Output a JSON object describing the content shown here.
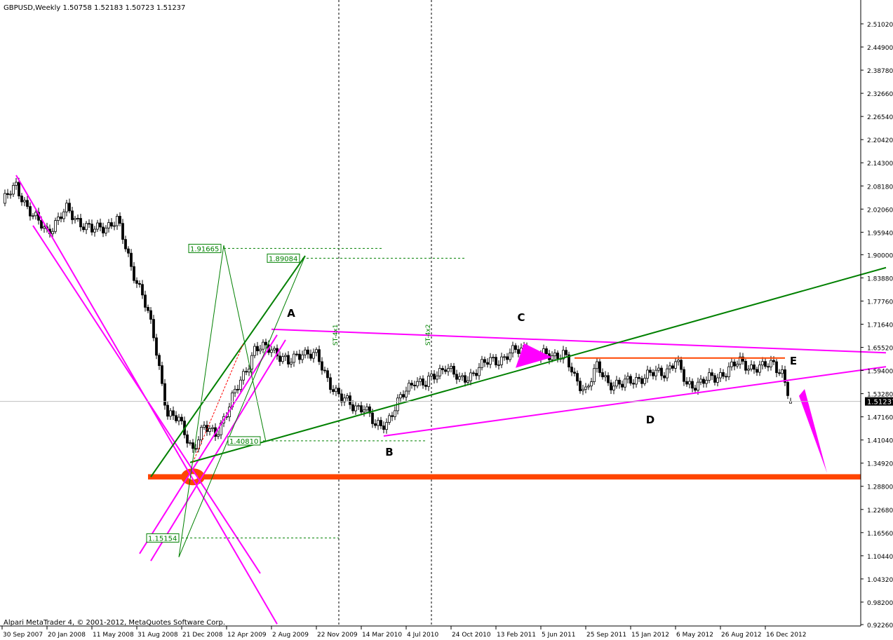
{
  "header": {
    "symbol_title": "GBPUSD,Weekly  1.50758 1.52183 1.50723 1.51237"
  },
  "footer": {
    "copyright": "Alpari MetaTrader 4, © 2001-2012, MetaQuotes Software Corp."
  },
  "colors": {
    "candle_up": "#ffffff",
    "candle_down": "#000000",
    "magenta": "#ff00ff",
    "green": "#008000",
    "orange": "#ff4500",
    "red": "#ff0000",
    "current_price_line": "#c0c0c0"
  },
  "chart_data": {
    "type": "candlestick",
    "symbol": "GBPUSD",
    "timeframe": "Weekly",
    "last_bar": {
      "open": 1.50758,
      "high": 1.52183,
      "low": 1.50723,
      "close": 1.51237
    },
    "current_price_label": "1.51237",
    "ylim": [
      0.9226,
      2.5102
    ],
    "y_ticks": [
      "2.51020",
      "2.44900",
      "2.38780",
      "2.32660",
      "2.26540",
      "2.20420",
      "2.14300",
      "2.08180",
      "2.02060",
      "1.95940",
      "1.90000",
      "1.83880",
      "1.77760",
      "1.71640",
      "1.65520",
      "1.59400",
      "1.53280",
      "1.47160",
      "1.41040",
      "1.34920",
      "1.28800",
      "1.22680",
      "1.16560",
      "1.10440",
      "1.04320",
      "0.98200",
      "0.92260"
    ],
    "x_ticks": [
      "30 Sep 2007",
      "20 Jan 2008",
      "11 May 2008",
      "31 Aug 2008",
      "21 Dec 2008",
      "12 Apr 2009",
      "2 Aug 2009",
      "22 Nov 2009",
      "14 Mar 2010",
      "4 Jul 2010",
      "24 Oct 2010",
      "13 Feb 2011",
      "5 Jun 2011",
      "25 Sep 2011",
      "15 Jan 2012",
      "6 May 2012",
      "26 Aug 2012",
      "16 Dec 2012"
    ],
    "x_tick_dates": [
      "2007-09-30",
      "2008-01-20",
      "2008-05-11",
      "2008-08-31",
      "2008-12-21",
      "2009-04-12",
      "2009-08-02",
      "2009-11-22",
      "2010-03-14",
      "2010-07-04",
      "2010-10-24",
      "2011-02-13",
      "2011-06-05",
      "2011-09-25",
      "2012-01-15",
      "2012-05-06",
      "2012-08-26",
      "2012-12-16"
    ],
    "approx_closes": [
      [
        "2007-09-30",
        2.036
      ],
      [
        "2007-11-04",
        2.082
      ],
      [
        "2007-12-16",
        2.0
      ],
      [
        "2008-01-20",
        1.962
      ],
      [
        "2008-03-09",
        2.017
      ],
      [
        "2008-05-11",
        1.962
      ],
      [
        "2008-07-13",
        1.99
      ],
      [
        "2008-08-17",
        1.87
      ],
      [
        "2008-09-14",
        1.795
      ],
      [
        "2008-10-12",
        1.684
      ],
      [
        "2008-11-16",
        1.48
      ],
      [
        "2008-12-14",
        1.46
      ],
      [
        "2009-01-18",
        1.388
      ],
      [
        "2009-02-15",
        1.44
      ],
      [
        "2009-03-15",
        1.43
      ],
      [
        "2009-04-12",
        1.48
      ],
      [
        "2009-05-17",
        1.57
      ],
      [
        "2009-06-21",
        1.647
      ],
      [
        "2009-08-02",
        1.656
      ],
      [
        "2009-09-13",
        1.61
      ],
      [
        "2009-10-18",
        1.647
      ],
      [
        "2009-11-22",
        1.63
      ],
      [
        "2009-12-20",
        1.573
      ],
      [
        "2010-01-24",
        1.517
      ],
      [
        "2010-02-21",
        1.5
      ],
      [
        "2010-03-21",
        1.5
      ],
      [
        "2010-04-18",
        1.443
      ],
      [
        "2010-05-16",
        1.46
      ],
      [
        "2010-06-20",
        1.517
      ],
      [
        "2010-07-25",
        1.573
      ],
      [
        "2010-08-22",
        1.555
      ],
      [
        "2010-10-10",
        1.61
      ],
      [
        "2010-11-14",
        1.564
      ],
      [
        "2010-12-19",
        1.59
      ],
      [
        "2011-01-30",
        1.62
      ],
      [
        "2011-03-06",
        1.628
      ],
      [
        "2011-04-24",
        1.656
      ],
      [
        "2011-05-22",
        1.628
      ],
      [
        "2011-06-26",
        1.637
      ],
      [
        "2011-07-31",
        1.637
      ],
      [
        "2011-08-28",
        1.573
      ],
      [
        "2011-09-25",
        1.545
      ],
      [
        "2011-10-23",
        1.6
      ],
      [
        "2011-11-20",
        1.564
      ],
      [
        "2011-12-25",
        1.555
      ],
      [
        "2012-01-29",
        1.573
      ],
      [
        "2012-03-04",
        1.582
      ],
      [
        "2012-04-08",
        1.591
      ],
      [
        "2012-05-06",
        1.619
      ],
      [
        "2012-06-03",
        1.555
      ],
      [
        "2012-07-08",
        1.564
      ],
      [
        "2012-08-12",
        1.573
      ],
      [
        "2012-09-16",
        1.6
      ],
      [
        "2012-10-14",
        1.614
      ],
      [
        "2012-11-11",
        1.605
      ],
      [
        "2012-12-09",
        1.6
      ],
      [
        "2013-01-06",
        1.614
      ],
      [
        "2013-01-27",
        1.59
      ],
      [
        "2013-02-10",
        1.536
      ],
      [
        "2013-02-17",
        1.51237
      ]
    ],
    "annotations": {
      "lines": [
        {
          "color": "magenta",
          "width": 2,
          "p1": [
            "2007-11-04",
            2.11
          ],
          "p2": [
            "2009-08-16",
            0.924
          ]
        },
        {
          "color": "magenta",
          "width": 2,
          "p1": [
            "2007-12-16",
            1.977
          ],
          "p2": [
            "2009-07-05",
            1.058
          ]
        },
        {
          "color": "magenta",
          "width": 2,
          "p1": [
            "2008-09-07",
            1.11
          ],
          "p2": [
            "2009-08-16",
            1.688
          ]
        },
        {
          "color": "magenta",
          "width": 2,
          "p1": [
            "2008-10-05",
            1.091
          ],
          "p2": [
            "2009-09-06",
            1.675
          ]
        },
        {
          "color": "magenta",
          "width": 2,
          "p1": [
            "2009-08-02",
            1.703
          ],
          "p2": [
            "2013-10-13",
            1.641
          ]
        },
        {
          "color": "magenta",
          "width": 2,
          "p1": [
            "2010-05-09",
            1.421
          ],
          "p2": [
            "2013-10-13",
            1.604
          ]
        },
        {
          "color": "green",
          "width": 2,
          "p1": [
            "2008-10-05",
            1.313
          ],
          "p2": [
            "2009-10-25",
            1.897
          ]
        },
        {
          "color": "green",
          "width": 2,
          "p1": [
            "2009-01-11",
            1.351
          ],
          "p2": [
            "2013-10-13",
            1.866
          ]
        },
        {
          "color": "green",
          "width": 1,
          "p1": [
            "2008-12-14",
            1.101
          ],
          "p2": [
            "2009-04-05",
            1.925
          ]
        },
        {
          "color": "green",
          "width": 1,
          "p1": [
            "2009-04-05",
            1.925
          ],
          "p2": [
            "2009-07-19",
            1.406
          ]
        },
        {
          "color": "green",
          "width": 1,
          "p1": [
            "2008-12-14",
            1.101
          ],
          "p2": [
            "2009-10-25",
            1.897
          ]
        },
        {
          "color": "red",
          "width": 1,
          "dash": true,
          "p1": [
            "2009-01-18",
            1.351
          ],
          "p2": [
            "2009-05-24",
            1.666
          ]
        },
        {
          "color": "orange",
          "width": 2,
          "p1": [
            "2011-08-28",
            1.627
          ],
          "p2": [
            "2013-02-03",
            1.627
          ]
        }
      ],
      "zone": {
        "color": "orange",
        "price_from": 1.306,
        "price_to": 1.32,
        "start": "2008-09-28"
      },
      "levels": [
        {
          "label": "1.91665",
          "price": 1.91665,
          "start": "2009-04-05",
          "end": "2010-05-09"
        },
        {
          "label": "1.89084",
          "price": 1.89084,
          "start": "2009-10-18",
          "end": "2010-11-28"
        },
        {
          "label": "1.40810",
          "price": 1.4081,
          "start": "2009-07-12",
          "end": "2010-08-22"
        },
        {
          "label": "1.15154",
          "price": 1.15154,
          "start": "2008-12-21",
          "end": "2010-01-17"
        }
      ],
      "vlines": [
        {
          "date": "2010-01-17",
          "label": "ST-4x1"
        },
        {
          "date": "2010-09-05",
          "label": "ST-4x2"
        }
      ],
      "wave_labels": [
        {
          "text": "A",
          "date": "2009-09-20",
          "price": 1.736
        },
        {
          "text": "B",
          "date": "2010-05-23",
          "price": 1.369
        },
        {
          "text": "C",
          "date": "2011-04-17",
          "price": 1.725
        },
        {
          "text": "D",
          "date": "2012-03-04",
          "price": 1.454
        },
        {
          "text": "E",
          "date": "2013-02-24",
          "price": 1.61
        }
      ],
      "triangles": [
        {
          "color": "magenta",
          "points": [
            [
              "2011-04-03",
              1.601
            ],
            [
              "2011-04-24",
              1.666
            ],
            [
              "2011-07-03",
              1.629
            ]
          ]
        },
        {
          "color": "magenta",
          "points": [
            [
              "2013-03-10",
              1.527
            ],
            [
              "2013-03-24",
              1.545
            ],
            [
              "2013-05-19",
              1.323
            ]
          ]
        }
      ],
      "ellipse": {
        "color": "orange",
        "date": "2009-01-18",
        "price": 1.313
      }
    }
  }
}
